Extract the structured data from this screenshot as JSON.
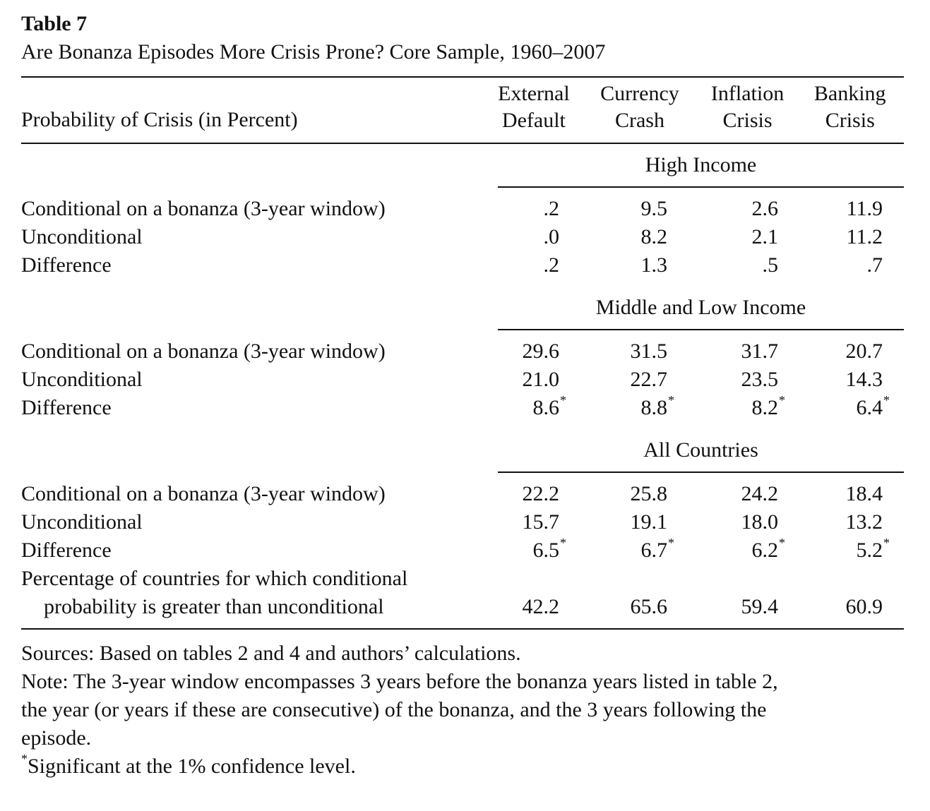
{
  "table": {
    "label": "Table 7",
    "title": "Are Bonanza Episodes More Crisis Prone? Core Sample, 1960–2007",
    "stub_header": "Probability of Crisis (in Percent)",
    "columns": [
      {
        "line1": "External",
        "line2": "Default"
      },
      {
        "line1": "Currency",
        "line2": "Crash"
      },
      {
        "line1": "Inflation",
        "line2": "Crisis"
      },
      {
        "line1": "Banking",
        "line2": "Crisis"
      }
    ],
    "sections": [
      {
        "heading": "High Income",
        "rows": [
          {
            "label": "Conditional on a bonanza (3-year window)",
            "values": [
              ".2",
              "9.5",
              "2.6",
              "11.9"
            ],
            "significant": [
              false,
              false,
              false,
              false
            ]
          },
          {
            "label": "Unconditional",
            "values": [
              ".0",
              "8.2",
              "2.1",
              "11.2"
            ],
            "significant": [
              false,
              false,
              false,
              false
            ]
          },
          {
            "label": "Difference",
            "values": [
              ".2",
              "1.3",
              ".5",
              ".7"
            ],
            "significant": [
              false,
              false,
              false,
              false
            ]
          }
        ]
      },
      {
        "heading": "Middle and Low Income",
        "rows": [
          {
            "label": "Conditional on a bonanza (3-year window)",
            "values": [
              "29.6",
              "31.5",
              "31.7",
              "20.7"
            ],
            "significant": [
              false,
              false,
              false,
              false
            ]
          },
          {
            "label": "Unconditional",
            "values": [
              "21.0",
              "22.7",
              "23.5",
              "14.3"
            ],
            "significant": [
              false,
              false,
              false,
              false
            ]
          },
          {
            "label": "Difference",
            "values": [
              "8.6",
              "8.8",
              "8.2",
              "6.4"
            ],
            "significant": [
              true,
              true,
              true,
              true
            ]
          }
        ]
      },
      {
        "heading": "All Countries",
        "rows": [
          {
            "label": "Conditional on a bonanza (3-year window)",
            "values": [
              "22.2",
              "25.8",
              "24.2",
              "18.4"
            ],
            "significant": [
              false,
              false,
              false,
              false
            ]
          },
          {
            "label": "Unconditional",
            "values": [
              "15.7",
              "19.1",
              "18.0",
              "13.2"
            ],
            "significant": [
              false,
              false,
              false,
              false
            ]
          },
          {
            "label": "Difference",
            "values": [
              "6.5",
              "6.7",
              "6.2",
              "5.2"
            ],
            "significant": [
              true,
              true,
              true,
              true
            ]
          }
        ],
        "extra_row": {
          "label_line1": "Percentage of countries for which conditional",
          "label_line2": "probability is greater than unconditional",
          "values": [
            "42.2",
            "65.6",
            "59.4",
            "60.9"
          ]
        }
      }
    ],
    "asterisk": "*",
    "sources": "Sources: Based on tables 2 and 4 and authors’ calculations.",
    "note_line1": "Note: The 3-year window encompasses 3 years before the bonanza years listed in table 2,",
    "note_line2": "the year (or years if these are consecutive) of the bonanza, and the 3 years following the",
    "note_line3": "episode.",
    "significance_note": "Significant at the 1% confidence level."
  }
}
